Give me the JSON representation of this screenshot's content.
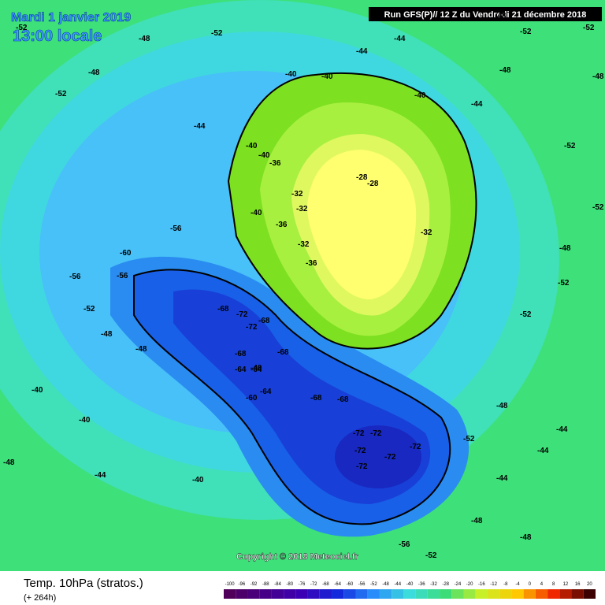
{
  "header": {
    "date": "Mardi 1 janvier 2019",
    "time": "13:00 locale",
    "run": "Run GFS(P)// 12 Z du Vendredi 21 décembre 2018"
  },
  "copyright": "Copyright © 2018 Meteociel.fr",
  "footer": {
    "title": "Temp. 10hPa (stratos.)",
    "lead": "(+ 264h)"
  },
  "scale": [
    -100,
    -96,
    -92,
    -88,
    -84,
    -80,
    -76,
    -72,
    -68,
    -64,
    -60,
    -56,
    -52,
    -48,
    -44,
    -40,
    -36,
    -32,
    -28,
    -24,
    -20,
    -16,
    -12,
    -8,
    -4,
    0,
    4,
    8,
    12,
    16,
    20
  ],
  "contour_labels": [
    -52,
    -52,
    -48,
    -48,
    -44,
    -44,
    -40,
    -40,
    -40,
    -44,
    -48,
    -48,
    -52,
    -52,
    -52,
    -44,
    -48,
    -52,
    -52,
    -56,
    -60,
    -56,
    -56,
    -52,
    -48,
    -48,
    -40,
    -40,
    -40,
    -40,
    -40,
    -36,
    -32,
    -32,
    -28,
    -28,
    -32,
    -36,
    -36,
    -32,
    -68,
    -72,
    -72,
    -68,
    -68,
    -64,
    -64,
    -60,
    -64,
    -68,
    -68,
    -68,
    -72,
    -72,
    -72,
    -72,
    -72,
    -72,
    -52,
    -56,
    -52,
    -48,
    -44,
    -44,
    -44,
    -48,
    -52,
    -52,
    -48,
    -40,
    -40,
    -44,
    -48,
    -48
  ]
}
